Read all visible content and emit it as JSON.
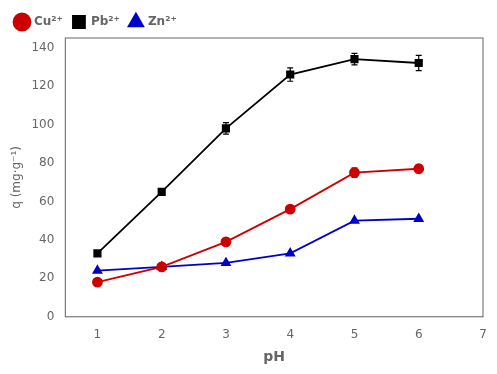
{
  "chart_data": {
    "type": "line",
    "x_label": "pH",
    "y_label": "q (mg·g⁻¹)",
    "x": [
      1,
      2,
      3,
      4,
      5,
      6
    ],
    "series": [
      {
        "name": "Cu²⁺",
        "color": "#cc0000",
        "marker": "circle",
        "values": [
          18,
          26,
          39,
          56,
          75,
          77
        ],
        "errors": [
          0,
          0,
          0,
          0,
          2.5,
          2.0
        ]
      },
      {
        "name": "Pb²⁺",
        "color": "#000000",
        "marker": "square",
        "values": [
          33,
          65,
          98,
          126,
          134,
          132
        ],
        "errors": [
          0,
          0,
          3.0,
          3.5,
          3.0,
          4.0
        ]
      },
      {
        "name": "Zn²⁺",
        "color": "#0000cc",
        "marker": "triangle",
        "values": [
          24,
          26,
          28,
          33,
          50,
          51
        ],
        "errors": [
          0,
          0,
          0,
          0,
          0,
          0
        ]
      }
    ],
    "xlim": [
      0.5,
      7.0
    ],
    "xticks": [
      1,
      2,
      3,
      4,
      5,
      6,
      7
    ],
    "ylim": [
      0,
      145
    ],
    "yticks": [
      0,
      20,
      40,
      60,
      80,
      100,
      120,
      140
    ],
    "grid": false,
    "legend": "upper left"
  }
}
